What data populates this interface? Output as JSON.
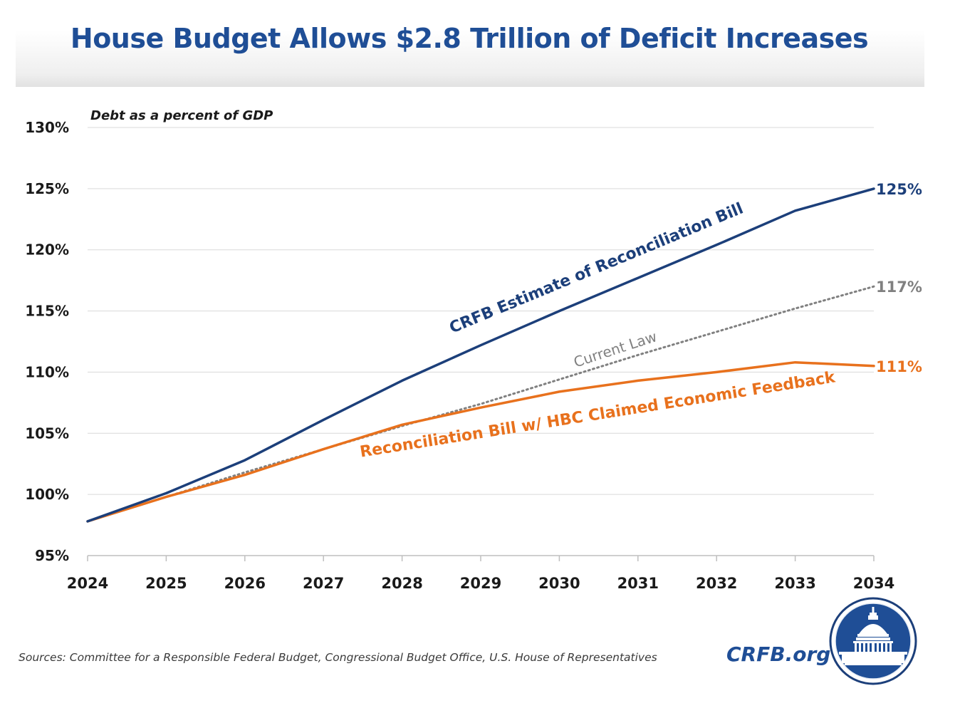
{
  "title": "House Budget Allows $2.8 Trillion of Deficit Increases",
  "subtitle": "Debt as a percent of GDP",
  "sources": "Sources: Committee for a Responsible Federal Budget, Congressional Budget Office, U.S. House of Representatives",
  "brand": "CRFB.org",
  "colors": {
    "title": "#1f4e96",
    "crfb_series": "#1c3f7a",
    "current_law_series": "#808080",
    "hbc_series": "#e8711d",
    "grid": "#d9d9d9"
  },
  "chart_data": {
    "type": "line",
    "title": "House Budget Allows $2.8 Trillion of Deficit Increases",
    "ylabel": "Debt as a percent of GDP",
    "xlabel": "",
    "ylim": [
      95,
      130
    ],
    "yticks": [
      95,
      100,
      105,
      110,
      115,
      120,
      125,
      130
    ],
    "ytick_labels": [
      "95%",
      "100%",
      "105%",
      "110%",
      "115%",
      "120%",
      "125%",
      "130%"
    ],
    "x": [
      "2024",
      "2025",
      "2026",
      "2027",
      "2028",
      "2029",
      "2030",
      "2031",
      "2032",
      "2033",
      "2034"
    ],
    "grid": "horizontal",
    "series": [
      {
        "name": "CRFB Estimate of Reconciliation Bill",
        "style": "solid",
        "color": "#1c3f7a",
        "values": [
          97.8,
          100.1,
          102.8,
          106.1,
          109.3,
          112.2,
          115.0,
          117.7,
          120.4,
          123.2,
          125.0
        ],
        "end_label": "125%"
      },
      {
        "name": "Current Law",
        "style": "dotted",
        "color": "#808080",
        "values": [
          97.8,
          99.8,
          101.8,
          103.7,
          105.6,
          107.4,
          109.4,
          111.4,
          113.3,
          115.2,
          117.0
        ],
        "end_label": "117%"
      },
      {
        "name": "Reconciliation Bill w/ HBC Claimed Economic Feedback",
        "style": "solid",
        "color": "#e8711d",
        "values": [
          97.8,
          99.8,
          101.6,
          103.7,
          105.7,
          107.1,
          108.4,
          109.3,
          110.0,
          110.8,
          110.5
        ],
        "end_label": "111%"
      }
    ]
  }
}
